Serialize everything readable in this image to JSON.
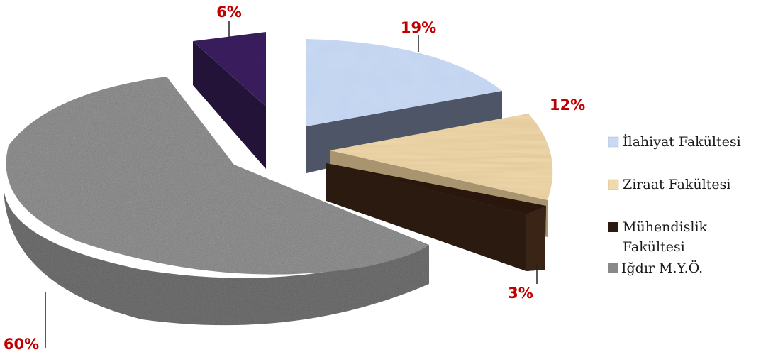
{
  "chart_data": {
    "type": "pie",
    "style": "3d-exploded",
    "title": "",
    "slices": [
      {
        "name": "İlahiyat Fakültesi",
        "value": 19,
        "label": "19%",
        "color": "#c9d9f2",
        "side_color": "#4e5566",
        "texture": "marble-blue"
      },
      {
        "name": "Ziraat Fakültesi",
        "value": 12,
        "label": "12%",
        "color": "#f0d9ad",
        "side_color": "#a89570",
        "texture": "light-wood"
      },
      {
        "name": "Mühendislik Fakültesi",
        "value": 3,
        "label": "3%",
        "color": "#2b1a10",
        "side_color": "#3a2415",
        "texture": "dark-wood"
      },
      {
        "name": "Iğdır M.Y.Ö.",
        "value": 60,
        "label": "60%",
        "color": "#9a9a9a",
        "side_color": "#777777",
        "texture": "granite"
      },
      {
        "name": "",
        "value": 6,
        "label": "6%",
        "color": "#3a1f5c",
        "side_color": "#241338",
        "texture": "purple"
      }
    ],
    "legend": {
      "placement": "right",
      "entries": [
        {
          "line1": "İlahiyat Fakültesi",
          "line2": "",
          "swatch": "#c9d9f2"
        },
        {
          "line1": "Ziraat Fakültesi",
          "line2": "",
          "swatch": "#f0d9ad"
        },
        {
          "line1": "Mühendislik",
          "line2": "Fakültesi",
          "swatch": "#2b1a10"
        },
        {
          "line1": "Iğdır M.Y.Ö.",
          "line2": "",
          "swatch": "#9a9a9a"
        }
      ]
    }
  }
}
